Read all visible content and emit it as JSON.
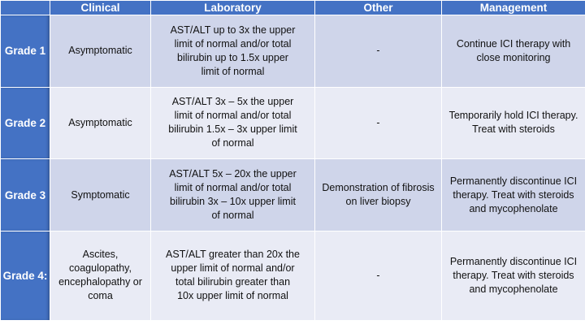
{
  "table": {
    "headers": [
      "",
      "Clinical",
      "Laboratory",
      "Other",
      "Management"
    ],
    "rows": [
      {
        "grade": "Grade 1",
        "clinical": "Asymptomatic",
        "laboratory": "AST/ALT up to 3x the upper\nlimit of normal and/or total\nbilirubin up to 1.5x upper\nlimit of normal",
        "other": "-",
        "management": "Continue ICI therapy with\nclose monitoring"
      },
      {
        "grade": "Grade 2",
        "clinical": "Asymptomatic",
        "laboratory": "AST/ALT 3x – 5x the upper\nlimit of normal and/or total\nbilirubin 1.5x – 3x upper limit\nof normal",
        "other": "-",
        "management": "Temporarily hold ICI therapy.\nTreat with steroids"
      },
      {
        "grade": "Grade 3",
        "clinical": "Symptomatic",
        "laboratory": "AST/ALT 5x – 20x the upper\nlimit of normal and/or total\nbilirubin 3x – 10x upper limit\nof normal",
        "other": "Demonstration of fibrosis\non liver biopsy",
        "management": "Permanently discontinue ICI\ntherapy. Treat with steroids\nand mycophenolate"
      },
      {
        "grade": "Grade 4:",
        "clinical": "Ascites,\ncoagulopathy,\nencephalopathy or\ncoma",
        "laboratory": "AST/ALT greater than 20x the\nupper limit of normal and/or\ntotal bilirubin greater than\n10x upper limit of normal",
        "other": "-",
        "management": "Permanently discontinue ICI\ntherapy. Treat with steroids\nand mycophenolate"
      }
    ]
  },
  "colors": {
    "header_blue": "#4472c4",
    "row_dark": "#cfd5ea",
    "row_light": "#e9ebf5"
  }
}
